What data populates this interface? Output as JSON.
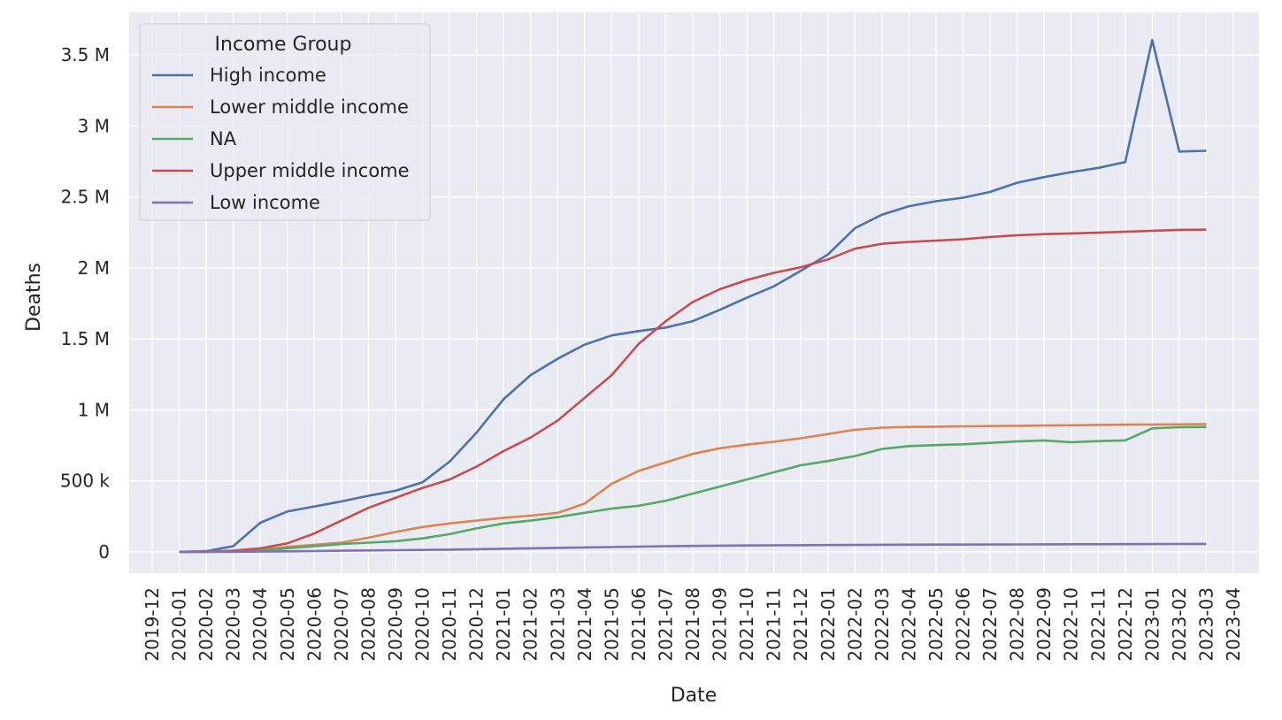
{
  "chart_data": {
    "type": "line",
    "title": "",
    "xlabel": "Date",
    "ylabel": "Deaths",
    "grid": true,
    "legend": {
      "title": "Income Group",
      "placement": "top-left"
    },
    "x_ticks": [
      "2019-12",
      "2020-01",
      "2020-02",
      "2020-03",
      "2020-04",
      "2020-05",
      "2020-06",
      "2020-07",
      "2020-08",
      "2020-09",
      "2020-10",
      "2020-11",
      "2020-12",
      "2021-01",
      "2021-02",
      "2021-03",
      "2021-04",
      "2021-05",
      "2021-06",
      "2021-07",
      "2021-08",
      "2021-09",
      "2021-10",
      "2021-11",
      "2021-12",
      "2022-01",
      "2022-02",
      "2022-03",
      "2022-04",
      "2022-05",
      "2022-06",
      "2022-07",
      "2022-08",
      "2022-09",
      "2022-10",
      "2022-11",
      "2022-12",
      "2023-01",
      "2023-02",
      "2023-03",
      "2023-04"
    ],
    "xlim": [
      "2019-12",
      "2023-04"
    ],
    "y_ticks": [
      {
        "value": 0,
        "label": "0"
      },
      {
        "value": 500000,
        "label": "500 k"
      },
      {
        "value": 1000000,
        "label": "1 M"
      },
      {
        "value": 1500000,
        "label": "1.5 M"
      },
      {
        "value": 2000000,
        "label": "2 M"
      },
      {
        "value": 2500000,
        "label": "2.5 M"
      },
      {
        "value": 3000000,
        "label": "3 M"
      },
      {
        "value": 3500000,
        "label": "3.5 M"
      }
    ],
    "ylim": [
      -150000,
      3800000
    ],
    "x": [
      "2020-01",
      "2020-02",
      "2020-03",
      "2020-04",
      "2020-05",
      "2020-06",
      "2020-07",
      "2020-08",
      "2020-09",
      "2020-10",
      "2020-11",
      "2020-12",
      "2021-01",
      "2021-02",
      "2021-03",
      "2021-04",
      "2021-05",
      "2021-06",
      "2021-07",
      "2021-08",
      "2021-09",
      "2021-10",
      "2021-11",
      "2021-12",
      "2022-01",
      "2022-02",
      "2022-03",
      "2022-04",
      "2022-05",
      "2022-06",
      "2022-07",
      "2022-08",
      "2022-09",
      "2022-10",
      "2022-11",
      "2022-12",
      "2023-01",
      "2023-02",
      "2023-03"
    ],
    "series": [
      {
        "name": "High income",
        "color": "#4c72b0",
        "values": [
          0,
          5000,
          40000,
          205000,
          285000,
          320000,
          355000,
          395000,
          430000,
          490000,
          635000,
          840000,
          1075000,
          1245000,
          1360000,
          1460000,
          1525000,
          1555000,
          1580000,
          1625000,
          1705000,
          1790000,
          1870000,
          1980000,
          2095000,
          2280000,
          2375000,
          2435000,
          2470000,
          2495000,
          2535000,
          2600000,
          2640000,
          2675000,
          2705000,
          2745000,
          3605000,
          2820000,
          2825000
        ]
      },
      {
        "name": "Lower middle income",
        "color": "#dd8452",
        "values": [
          0,
          2000,
          5000,
          15000,
          35000,
          50000,
          65000,
          100000,
          140000,
          175000,
          200000,
          220000,
          240000,
          255000,
          275000,
          340000,
          480000,
          570000,
          630000,
          690000,
          730000,
          755000,
          775000,
          800000,
          830000,
          860000,
          875000,
          880000,
          882000,
          884000,
          886000,
          888000,
          890000,
          892000,
          894000,
          896000,
          897000,
          898000,
          900000
        ]
      },
      {
        "name": "NA",
        "color": "#55a868",
        "values": [
          0,
          1000,
          3000,
          10000,
          25000,
          40000,
          55000,
          65000,
          75000,
          95000,
          125000,
          165000,
          200000,
          220000,
          245000,
          275000,
          305000,
          325000,
          360000,
          410000,
          460000,
          510000,
          560000,
          610000,
          640000,
          675000,
          725000,
          745000,
          752000,
          758000,
          768000,
          778000,
          785000,
          772000,
          780000,
          785000,
          870000,
          878000,
          880000
        ]
      },
      {
        "name": "Upper middle income",
        "color": "#c44e52",
        "values": [
          0,
          2000,
          8000,
          25000,
          60000,
          130000,
          220000,
          310000,
          380000,
          450000,
          510000,
          600000,
          710000,
          805000,
          925000,
          1085000,
          1245000,
          1465000,
          1625000,
          1760000,
          1850000,
          1915000,
          1965000,
          2005000,
          2060000,
          2135000,
          2170000,
          2183000,
          2192000,
          2202000,
          2218000,
          2230000,
          2238000,
          2243000,
          2248000,
          2255000,
          2262000,
          2268000,
          2270000
        ]
      },
      {
        "name": "Low income",
        "color": "#8172b3",
        "values": [
          0,
          0,
          1000,
          2000,
          4000,
          6000,
          8000,
          10000,
          12000,
          14000,
          16000,
          19000,
          22000,
          25000,
          28000,
          31000,
          34000,
          37000,
          40000,
          42000,
          44000,
          45000,
          46000,
          47000,
          48000,
          49000,
          50000,
          50500,
          51000,
          51500,
          52000,
          52500,
          53000,
          53500,
          54000,
          54500,
          55000,
          55500,
          56000
        ]
      }
    ]
  }
}
